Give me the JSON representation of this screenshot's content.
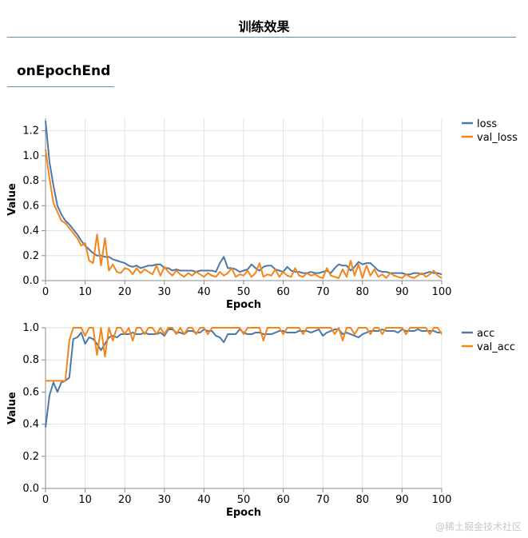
{
  "page": {
    "title": "训练效果",
    "tab": "onEpochEnd",
    "watermark": "@稀土掘金技术社区"
  },
  "colors": {
    "series1": "#4c78a8",
    "series2": "#f58518",
    "grid": "#e2e2e2",
    "axis": "#888888",
    "rule": "#5a8fb5"
  },
  "chart_data": [
    {
      "type": "line",
      "xlabel": "Epoch",
      "ylabel": "Value",
      "xlim": [
        0,
        100
      ],
      "ylim": [
        0,
        1.3
      ],
      "xticks": [
        0,
        10,
        20,
        30,
        40,
        50,
        60,
        70,
        80,
        90,
        100
      ],
      "yticks": [
        0.0,
        0.2,
        0.4,
        0.6,
        0.8,
        1.0,
        1.2
      ],
      "ytick_labels": [
        "0.0",
        "0.2",
        "0.4",
        "0.6",
        "0.8",
        "1.0",
        "1.2"
      ],
      "grid": true,
      "legend": "top-right",
      "series": [
        {
          "name": "loss",
          "color": "#4c78a8",
          "values": [
            1.28,
            0.95,
            0.76,
            0.6,
            0.53,
            0.48,
            0.45,
            0.41,
            0.37,
            0.32,
            0.28,
            0.25,
            0.22,
            0.2,
            0.2,
            0.19,
            0.19,
            0.17,
            0.16,
            0.15,
            0.14,
            0.12,
            0.11,
            0.12,
            0.1,
            0.11,
            0.12,
            0.12,
            0.13,
            0.13,
            0.1,
            0.1,
            0.08,
            0.09,
            0.08,
            0.08,
            0.08,
            0.08,
            0.07,
            0.08,
            0.08,
            0.08,
            0.08,
            0.07,
            0.14,
            0.19,
            0.1,
            0.1,
            0.09,
            0.07,
            0.08,
            0.09,
            0.13,
            0.1,
            0.08,
            0.11,
            0.12,
            0.12,
            0.09,
            0.08,
            0.07,
            0.11,
            0.08,
            0.07,
            0.07,
            0.06,
            0.06,
            0.07,
            0.06,
            0.06,
            0.07,
            0.08,
            0.06,
            0.1,
            0.13,
            0.12,
            0.12,
            0.08,
            0.11,
            0.15,
            0.13,
            0.14,
            0.14,
            0.11,
            0.08,
            0.07,
            0.07,
            0.06,
            0.06,
            0.06,
            0.06,
            0.05,
            0.05,
            0.06,
            0.06,
            0.05,
            0.06,
            0.07,
            0.06,
            0.06,
            0.05
          ]
        },
        {
          "name": "val_loss",
          "color": "#f58518",
          "values": [
            1.05,
            0.82,
            0.62,
            0.55,
            0.48,
            0.46,
            0.42,
            0.38,
            0.34,
            0.28,
            0.3,
            0.16,
            0.14,
            0.37,
            0.12,
            0.34,
            0.08,
            0.13,
            0.07,
            0.06,
            0.1,
            0.09,
            0.05,
            0.1,
            0.06,
            0.09,
            0.07,
            0.05,
            0.12,
            0.04,
            0.11,
            0.07,
            0.04,
            0.08,
            0.05,
            0.03,
            0.06,
            0.04,
            0.07,
            0.05,
            0.03,
            0.06,
            0.04,
            0.03,
            0.07,
            0.04,
            0.06,
            0.1,
            0.03,
            0.05,
            0.04,
            0.08,
            0.03,
            0.06,
            0.14,
            0.03,
            0.05,
            0.04,
            0.09,
            0.03,
            0.07,
            0.04,
            0.03,
            0.1,
            0.04,
            0.03,
            0.06,
            0.04,
            0.05,
            0.03,
            0.02,
            0.1,
            0.04,
            0.03,
            0.02,
            0.09,
            0.03,
            0.16,
            0.04,
            0.13,
            0.02,
            0.12,
            0.04,
            0.09,
            0.03,
            0.05,
            0.02,
            0.06,
            0.04,
            0.03,
            0.02,
            0.05,
            0.03,
            0.02,
            0.04,
            0.06,
            0.03,
            0.05,
            0.08,
            0.04,
            0.02
          ]
        }
      ]
    },
    {
      "type": "line",
      "xlabel": "Epoch",
      "ylabel": "Value",
      "xlim": [
        0,
        100
      ],
      "ylim": [
        0,
        1.0
      ],
      "xticks": [
        0,
        10,
        20,
        30,
        40,
        50,
        60,
        70,
        80,
        90,
        100
      ],
      "yticks": [
        0.0,
        0.2,
        0.4,
        0.6,
        0.8,
        1.0
      ],
      "ytick_labels": [
        "0.0",
        "0.2",
        "0.4",
        "0.6",
        "0.8",
        "1.0"
      ],
      "grid": true,
      "legend": "top-right",
      "series": [
        {
          "name": "acc",
          "color": "#4c78a8",
          "values": [
            0.38,
            0.58,
            0.66,
            0.6,
            0.66,
            0.67,
            0.69,
            0.93,
            0.94,
            0.97,
            0.9,
            0.94,
            0.93,
            0.9,
            0.86,
            0.9,
            0.94,
            0.95,
            0.94,
            0.96,
            0.96,
            0.96,
            0.97,
            0.96,
            0.96,
            0.97,
            0.96,
            0.96,
            0.96,
            0.97,
            0.95,
            0.99,
            0.99,
            0.97,
            0.97,
            0.96,
            0.98,
            0.98,
            0.97,
            0.97,
            0.99,
            0.98,
            0.98,
            0.95,
            0.94,
            0.91,
            0.96,
            0.96,
            0.96,
            0.99,
            0.97,
            0.96,
            0.96,
            0.97,
            0.97,
            0.96,
            0.96,
            0.96,
            0.97,
            0.98,
            0.98,
            0.97,
            0.97,
            0.97,
            0.98,
            0.98,
            0.98,
            0.97,
            0.98,
            0.99,
            0.95,
            0.97,
            0.98,
            0.99,
            0.99,
            0.96,
            0.97,
            0.96,
            0.95,
            0.94,
            0.96,
            0.97,
            0.98,
            0.98,
            0.98,
            0.99,
            0.98,
            0.98,
            0.98,
            0.97,
            0.99,
            0.98,
            0.98,
            0.98,
            0.99,
            0.98,
            0.98,
            0.98,
            0.98,
            0.97,
            0.97
          ]
        },
        {
          "name": "val_acc",
          "color": "#f58518",
          "values": [
            0.67,
            0.67,
            0.67,
            0.67,
            0.67,
            0.67,
            0.92,
            1.0,
            1.0,
            1.0,
            0.95,
            1.0,
            1.0,
            0.83,
            1.0,
            0.82,
            1.0,
            0.92,
            1.0,
            1.0,
            0.96,
            1.0,
            0.92,
            1.0,
            1.0,
            0.96,
            1.0,
            1.0,
            0.96,
            1.0,
            0.96,
            1.0,
            1.0,
            0.96,
            1.0,
            0.96,
            1.0,
            1.0,
            0.96,
            1.0,
            1.0,
            0.96,
            1.0,
            1.0,
            1.0,
            1.0,
            1.0,
            1.0,
            1.0,
            1.0,
            0.96,
            1.0,
            1.0,
            1.0,
            1.0,
            0.92,
            1.0,
            1.0,
            1.0,
            1.0,
            0.96,
            1.0,
            1.0,
            1.0,
            1.0,
            0.96,
            1.0,
            1.0,
            1.0,
            1.0,
            1.0,
            1.0,
            1.0,
            0.96,
            1.0,
            0.92,
            1.0,
            1.0,
            0.96,
            1.0,
            1.0,
            1.0,
            0.96,
            1.0,
            1.0,
            0.96,
            1.0,
            1.0,
            1.0,
            1.0,
            1.0,
            0.96,
            1.0,
            1.0,
            1.0,
            1.0,
            1.0,
            0.96,
            1.0,
            1.0,
            0.96
          ]
        }
      ]
    }
  ]
}
